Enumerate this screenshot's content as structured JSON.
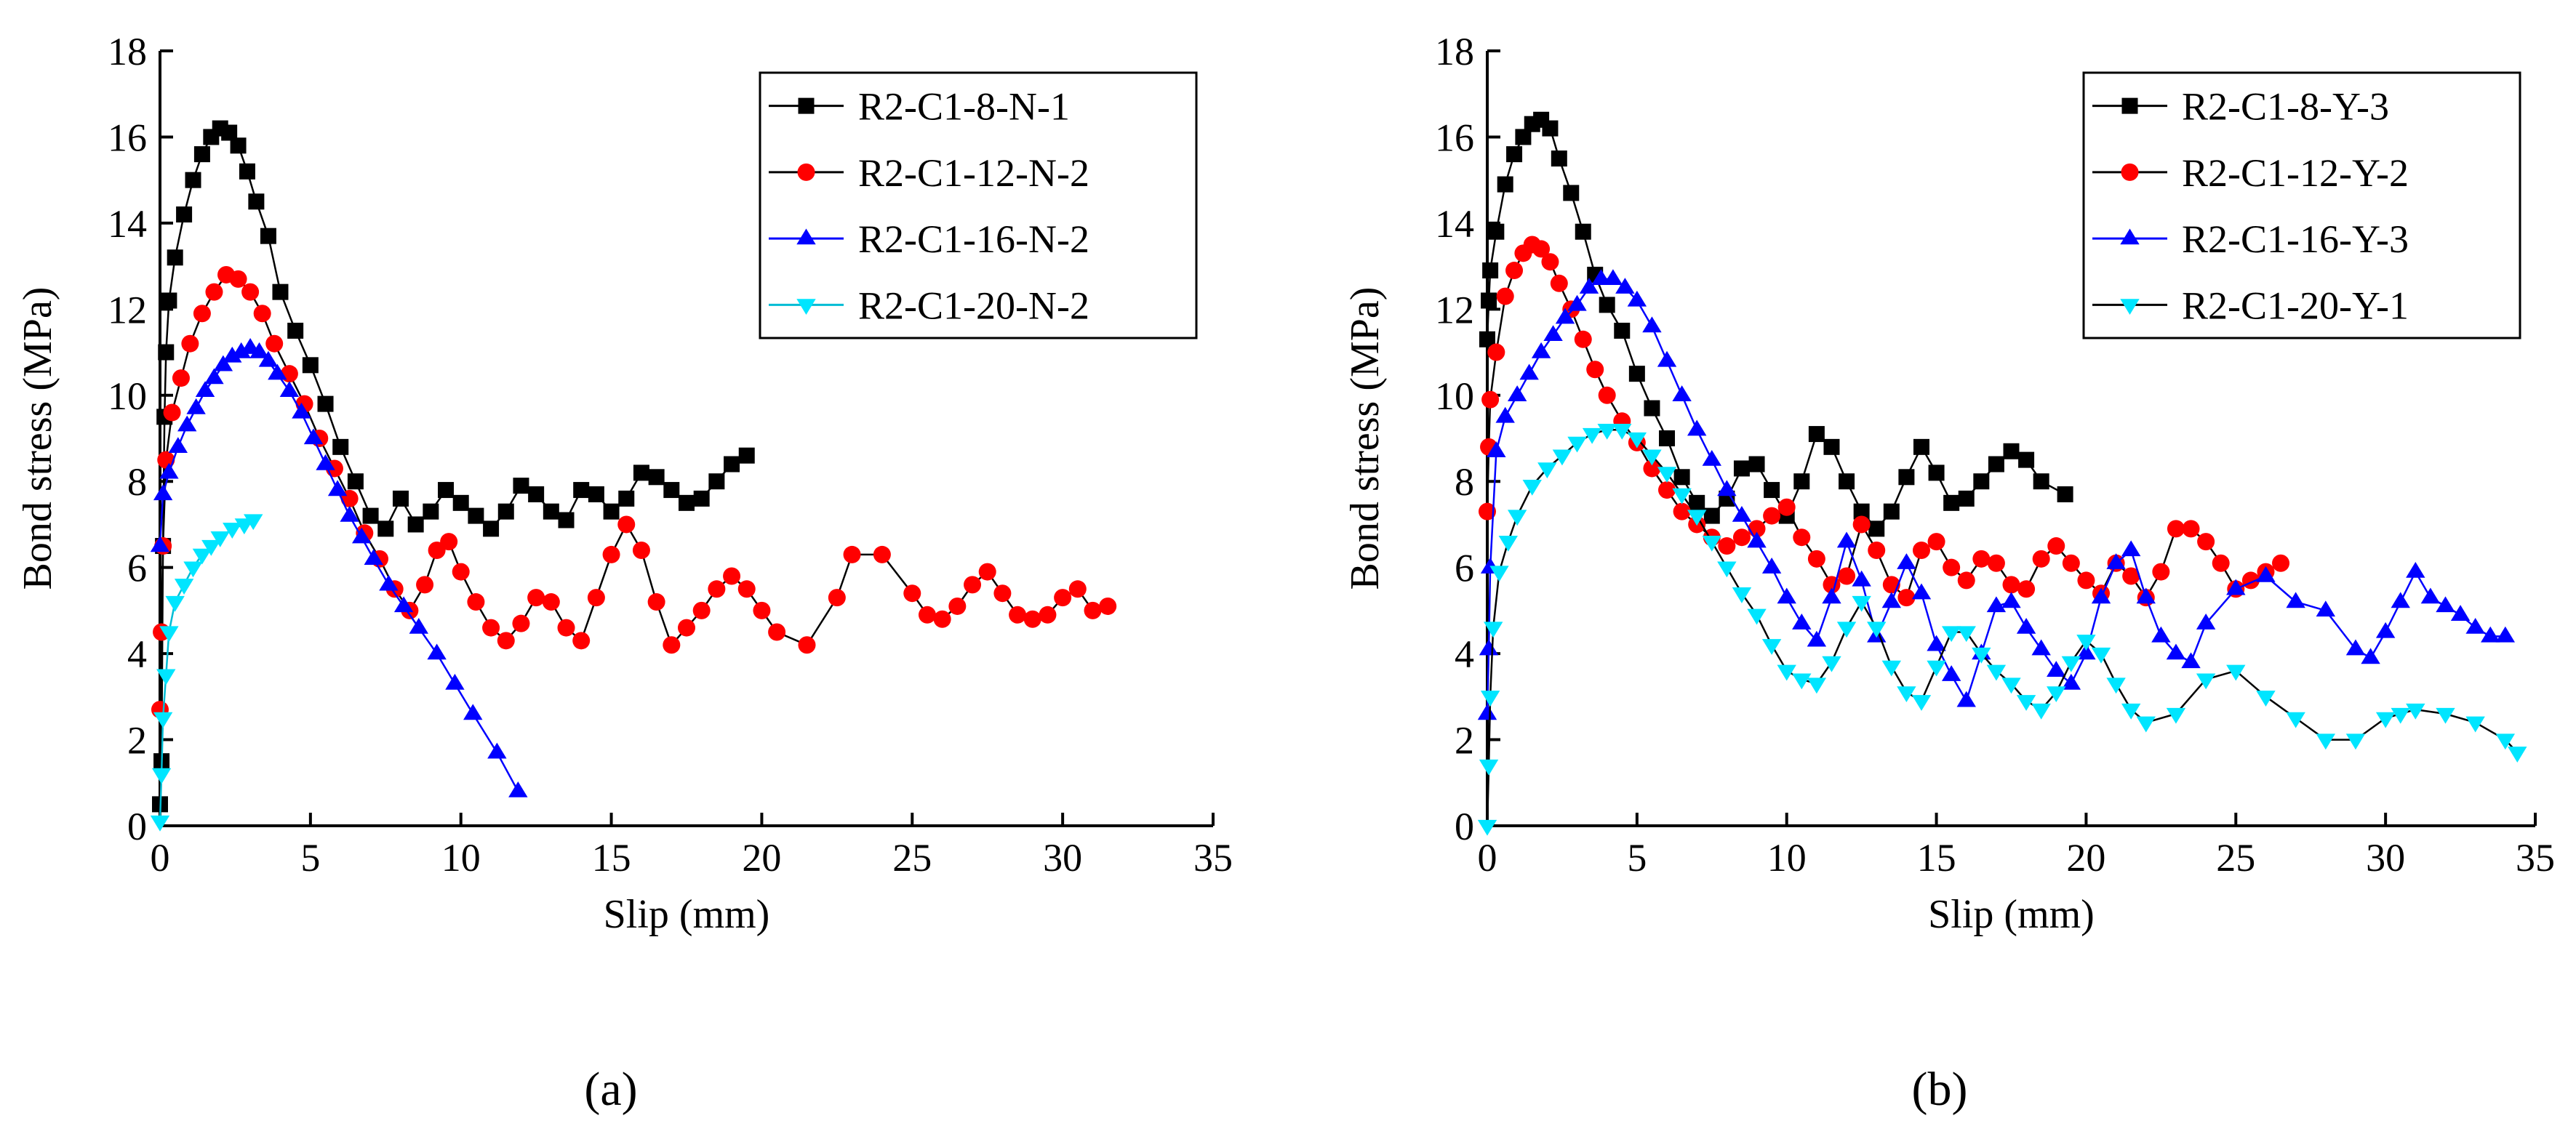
{
  "figure": {
    "panel_labels": [
      "(a)",
      "(b)"
    ]
  },
  "chart_data": [
    {
      "type": "line",
      "panel": "(a)",
      "xlabel": "Slip (mm)",
      "ylabel": "Bond stress (MPa)",
      "xlim": [
        0,
        35
      ],
      "ylim": [
        0,
        18
      ],
      "xticks": [
        0,
        5,
        10,
        15,
        20,
        25,
        30,
        35
      ],
      "yticks": [
        0,
        2,
        4,
        6,
        8,
        10,
        12,
        14,
        16,
        18
      ],
      "legend_position": "top-right",
      "series": [
        {
          "name": "R2-C1-8-N-1",
          "color": "#000000",
          "marker": "square",
          "line_color": "#000000",
          "x": [
            0,
            0.05,
            0.1,
            0.15,
            0.2,
            0.3,
            0.5,
            0.8,
            1.1,
            1.4,
            1.7,
            2.0,
            2.3,
            2.6,
            2.9,
            3.2,
            3.6,
            4.0,
            4.5,
            5.0,
            5.5,
            6.0,
            6.5,
            7.0,
            7.5,
            8.0,
            8.5,
            9.0,
            9.5,
            10.0,
            10.5,
            11.0,
            11.5,
            12.0,
            12.5,
            13.0,
            13.5,
            14.0,
            14.5,
            15.0,
            15.5,
            16.0,
            16.5,
            17.0,
            17.5,
            18.0,
            18.5,
            19.0,
            19.5
          ],
          "y": [
            0.5,
            1.5,
            6.5,
            9.5,
            11,
            12.2,
            13.2,
            14.2,
            15,
            15.6,
            16,
            16.2,
            16.1,
            15.8,
            15.2,
            14.5,
            13.7,
            12.4,
            11.5,
            10.7,
            9.8,
            8.8,
            8.0,
            7.2,
            6.9,
            7.6,
            7.0,
            7.3,
            7.8,
            7.5,
            7.2,
            6.9,
            7.3,
            7.9,
            7.7,
            7.3,
            7.1,
            7.8,
            7.7,
            7.3,
            7.6,
            8.2,
            8.1,
            7.8,
            7.5,
            7.6,
            8.0,
            8.4,
            8.6
          ]
        },
        {
          "name": "R2-C1-12-N-2",
          "color": "#ff0000",
          "marker": "circle",
          "line_color": "#000000",
          "x": [
            0,
            0.05,
            0.1,
            0.2,
            0.4,
            0.7,
            1.0,
            1.4,
            1.8,
            2.2,
            2.6,
            3.0,
            3.4,
            3.8,
            4.3,
            4.8,
            5.3,
            5.8,
            6.3,
            6.8,
            7.3,
            7.8,
            8.3,
            8.8,
            9.2,
            9.6,
            10.0,
            10.5,
            11.0,
            11.5,
            12.0,
            12.5,
            13.0,
            13.5,
            14.0,
            14.5,
            15.0,
            15.5,
            16.0,
            16.5,
            17.0,
            17.5,
            18.0,
            18.5,
            19.0,
            19.5,
            20.0,
            20.5,
            21.5,
            22.5,
            23.0,
            24.0,
            25.0,
            25.5,
            26.0,
            26.5,
            27.0,
            27.5,
            28.0,
            28.5,
            29.0,
            29.5,
            30.0,
            30.5,
            31.0,
            31.5
          ],
          "y": [
            2.7,
            4.5,
            6.5,
            8.5,
            9.6,
            10.4,
            11.2,
            11.9,
            12.4,
            12.8,
            12.7,
            12.4,
            11.9,
            11.2,
            10.5,
            9.8,
            9.0,
            8.3,
            7.6,
            6.8,
            6.2,
            5.5,
            5.0,
            5.6,
            6.4,
            6.6,
            5.9,
            5.2,
            4.6,
            4.3,
            4.7,
            5.3,
            5.2,
            4.6,
            4.3,
            5.3,
            6.3,
            7.0,
            6.4,
            5.2,
            4.2,
            4.6,
            5.0,
            5.5,
            5.8,
            5.5,
            5.0,
            4.5,
            4.2,
            5.3,
            6.3,
            6.3,
            5.4,
            4.9,
            4.8,
            5.1,
            5.6,
            5.9,
            5.4,
            4.9,
            4.8,
            4.9,
            5.3,
            5.5,
            5.0,
            5.1
          ]
        },
        {
          "name": "R2-C1-16-N-2",
          "color": "#0000ff",
          "marker": "triangle-up",
          "line_color": "#0000ff",
          "x": [
            0,
            0.1,
            0.3,
            0.6,
            0.9,
            1.2,
            1.5,
            1.8,
            2.1,
            2.4,
            2.7,
            3.0,
            3.3,
            3.6,
            3.9,
            4.3,
            4.7,
            5.1,
            5.5,
            5.9,
            6.3,
            6.7,
            7.1,
            7.6,
            8.1,
            8.6,
            9.2,
            9.8,
            10.4,
            11.2,
            11.9
          ],
          "y": [
            6.5,
            7.7,
            8.2,
            8.8,
            9.3,
            9.7,
            10.1,
            10.4,
            10.7,
            10.9,
            11.0,
            11.1,
            11.0,
            10.8,
            10.5,
            10.1,
            9.6,
            9.0,
            8.4,
            7.8,
            7.2,
            6.7,
            6.2,
            5.6,
            5.1,
            4.6,
            4.0,
            3.3,
            2.6,
            1.7,
            0.8
          ]
        },
        {
          "name": "R2-C1-20-N-2",
          "color": "#00e5ff",
          "marker": "triangle-down",
          "line_color": "#00bcd4",
          "x": [
            0,
            0.05,
            0.1,
            0.2,
            0.3,
            0.5,
            0.8,
            1.1,
            1.4,
            1.7,
            2.0,
            2.4,
            2.8,
            3.1
          ],
          "y": [
            0.1,
            1.2,
            2.5,
            3.5,
            4.5,
            5.2,
            5.6,
            6.0,
            6.3,
            6.5,
            6.7,
            6.9,
            7.0,
            7.1
          ]
        }
      ]
    },
    {
      "type": "line",
      "panel": "(b)",
      "xlabel": "Slip (mm)",
      "ylabel": "Bond stress (MPa)",
      "xlim": [
        0,
        35
      ],
      "ylim": [
        0,
        18
      ],
      "xticks": [
        0,
        5,
        10,
        15,
        20,
        25,
        30,
        35
      ],
      "yticks": [
        0,
        2,
        4,
        6,
        8,
        10,
        12,
        14,
        16,
        18
      ],
      "legend_position": "top-right",
      "series": [
        {
          "name": "R2-C1-8-Y-3",
          "color": "#000000",
          "marker": "square",
          "line_color": "#000000",
          "x": [
            0,
            0.05,
            0.1,
            0.3,
            0.6,
            0.9,
            1.2,
            1.5,
            1.8,
            2.1,
            2.4,
            2.8,
            3.2,
            3.6,
            4.0,
            4.5,
            5.0,
            5.5,
            6.0,
            6.5,
            7.0,
            7.5,
            8.0,
            8.5,
            9.0,
            9.5,
            10.0,
            10.5,
            11.0,
            11.5,
            12.0,
            12.5,
            13.0,
            13.5,
            14.0,
            14.5,
            15.0,
            15.5,
            16.0,
            16.5,
            17.0,
            17.5,
            18.0,
            18.5,
            19.3
          ],
          "y": [
            11.3,
            12.2,
            12.9,
            13.8,
            14.9,
            15.6,
            16.0,
            16.3,
            16.4,
            16.2,
            15.5,
            14.7,
            13.8,
            12.8,
            12.1,
            11.5,
            10.5,
            9.7,
            9.0,
            8.1,
            7.5,
            7.2,
            7.6,
            8.3,
            8.4,
            7.8,
            7.2,
            8.0,
            9.1,
            8.8,
            8.0,
            7.3,
            6.9,
            7.3,
            8.1,
            8.8,
            8.2,
            7.5,
            7.6,
            8.0,
            8.4,
            8.7,
            8.5,
            8.0,
            7.7
          ]
        },
        {
          "name": "R2-C1-12-Y-2",
          "color": "#ff0000",
          "marker": "circle",
          "line_color": "#000000",
          "x": [
            0,
            0.05,
            0.1,
            0.3,
            0.6,
            0.9,
            1.2,
            1.5,
            1.8,
            2.1,
            2.4,
            2.8,
            3.2,
            3.6,
            4.0,
            4.5,
            5.0,
            5.5,
            6.0,
            6.5,
            7.0,
            7.5,
            8.0,
            8.5,
            9.0,
            9.5,
            10.0,
            10.5,
            11.0,
            11.5,
            12.0,
            12.5,
            13.0,
            13.5,
            14.0,
            14.5,
            15.0,
            15.5,
            16.0,
            16.5,
            17.0,
            17.5,
            18.0,
            18.5,
            19.0,
            19.5,
            20.0,
            20.5,
            21.0,
            21.5,
            22.0,
            22.5,
            23.0,
            23.5,
            24.0,
            24.5,
            25.0,
            25.5,
            26.0,
            26.5
          ],
          "y": [
            7.3,
            8.8,
            9.9,
            11.0,
            12.3,
            12.9,
            13.3,
            13.5,
            13.4,
            13.1,
            12.6,
            12.0,
            11.3,
            10.6,
            10.0,
            9.4,
            8.9,
            8.3,
            7.8,
            7.3,
            7.0,
            6.7,
            6.5,
            6.7,
            6.9,
            7.2,
            7.4,
            6.7,
            6.2,
            5.6,
            5.8,
            7.0,
            6.4,
            5.6,
            5.3,
            6.4,
            6.6,
            6.0,
            5.7,
            6.2,
            6.1,
            5.6,
            5.5,
            6.2,
            6.5,
            6.1,
            5.7,
            5.4,
            6.1,
            5.8,
            5.3,
            5.9,
            6.9,
            6.9,
            6.6,
            6.1,
            5.5,
            5.7,
            5.9,
            6.1
          ]
        },
        {
          "name": "R2-C1-16-Y-3",
          "color": "#0000ff",
          "marker": "triangle-up",
          "line_color": "#0000ff",
          "x": [
            0,
            0.05,
            0.1,
            0.3,
            0.6,
            1.0,
            1.4,
            1.8,
            2.2,
            2.6,
            3.0,
            3.4,
            3.8,
            4.2,
            4.6,
            5.0,
            5.5,
            6.0,
            6.5,
            7.0,
            7.5,
            8.0,
            8.5,
            9.0,
            9.5,
            10.0,
            10.5,
            11.0,
            11.5,
            12.0,
            12.5,
            13.0,
            13.5,
            14.0,
            14.5,
            15.0,
            15.5,
            16.0,
            16.5,
            17.0,
            17.5,
            18.0,
            18.5,
            19.0,
            19.5,
            20.0,
            20.5,
            21.0,
            21.5,
            22.0,
            22.5,
            23.0,
            23.5,
            24.0,
            25.0,
            26.0,
            27.0,
            28.0,
            29.0,
            29.5,
            30.0,
            30.5,
            31.0,
            31.5,
            32.0,
            32.5,
            33.0,
            33.5,
            34.0
          ],
          "y": [
            2.6,
            4.1,
            6.0,
            8.7,
            9.5,
            10.0,
            10.5,
            11.0,
            11.4,
            11.8,
            12.1,
            12.5,
            12.7,
            12.7,
            12.5,
            12.2,
            11.6,
            10.8,
            10.0,
            9.2,
            8.5,
            7.8,
            7.2,
            6.6,
            6.0,
            5.3,
            4.7,
            4.3,
            5.3,
            6.6,
            5.7,
            4.4,
            5.2,
            6.1,
            5.4,
            4.2,
            3.5,
            2.9,
            4.0,
            5.1,
            5.2,
            4.6,
            4.1,
            3.6,
            3.3,
            4.0,
            5.3,
            6.1,
            6.4,
            5.3,
            4.4,
            4.0,
            3.8,
            4.7,
            5.5,
            5.8,
            5.2,
            5.0,
            4.1,
            3.9,
            4.5,
            5.2,
            5.9,
            5.3,
            5.1,
            4.9,
            4.6,
            4.4,
            4.4
          ]
        },
        {
          "name": "R2-C1-20-Y-1",
          "color": "#00e5ff",
          "marker": "triangle-down",
          "line_color": "#000000",
          "x": [
            0,
            0.05,
            0.1,
            0.2,
            0.4,
            0.7,
            1.0,
            1.5,
            2.0,
            2.5,
            3.0,
            3.5,
            4.0,
            4.5,
            5.0,
            5.5,
            6.0,
            6.5,
            7.0,
            7.5,
            8.0,
            8.5,
            9.0,
            9.5,
            10.0,
            10.5,
            11.0,
            11.5,
            12.0,
            12.5,
            13.0,
            13.5,
            14.0,
            14.5,
            15.0,
            15.5,
            16.0,
            16.5,
            17.0,
            17.5,
            18.0,
            18.5,
            19.0,
            19.5,
            20.0,
            20.5,
            21.0,
            21.5,
            22.0,
            23.0,
            24.0,
            25.0,
            26.0,
            27.0,
            28.0,
            29.0,
            30.0,
            30.5,
            31.0,
            32.0,
            33.0,
            34.0,
            34.4
          ],
          "y": [
            0,
            1.4,
            3.0,
            4.6,
            5.9,
            6.6,
            7.2,
            7.9,
            8.3,
            8.6,
            8.9,
            9.1,
            9.2,
            9.2,
            9.0,
            8.6,
            8.2,
            7.7,
            7.2,
            6.6,
            6.0,
            5.4,
            4.9,
            4.2,
            3.6,
            3.4,
            3.3,
            3.8,
            4.6,
            5.2,
            4.6,
            3.7,
            3.1,
            2.9,
            3.7,
            4.5,
            4.5,
            4.0,
            3.6,
            3.3,
            2.9,
            2.7,
            3.1,
            3.8,
            4.3,
            4.0,
            3.3,
            2.7,
            2.4,
            2.6,
            3.4,
            3.6,
            3.0,
            2.5,
            2.0,
            2.0,
            2.5,
            2.6,
            2.7,
            2.6,
            2.4,
            2.0,
            1.7
          ]
        }
      ]
    }
  ]
}
